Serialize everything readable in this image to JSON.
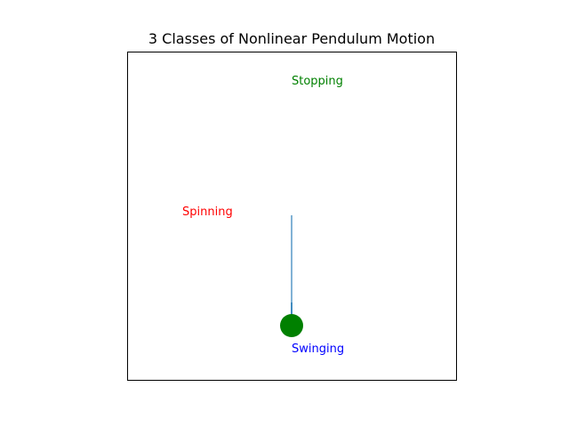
{
  "title": "3 Classes of Nonlinear Pendulum Motion",
  "labels": {
    "stopping": "Stopping",
    "spinning": "Spinning",
    "swinging": "Swinging"
  },
  "colors": {
    "stopping": "#008000",
    "spinning": "#ff0000",
    "swinging": "#0000ff",
    "rod": "#1f77b4",
    "bob": "#008000"
  }
}
